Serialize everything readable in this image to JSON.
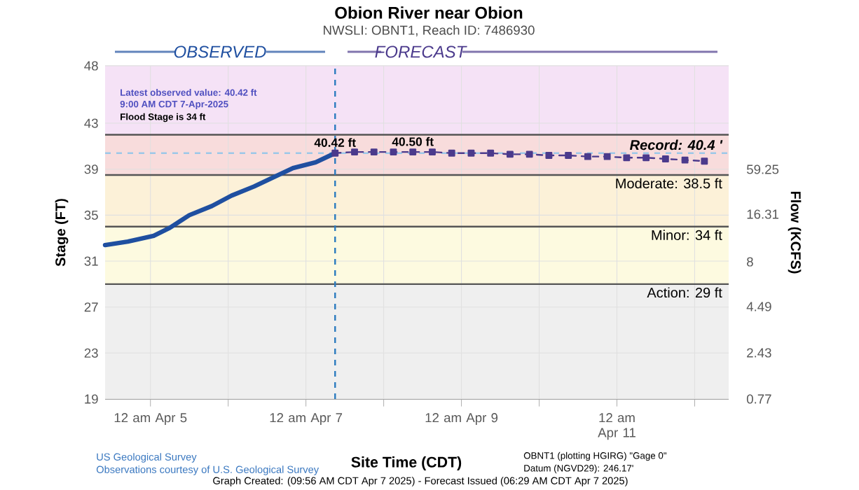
{
  "chart_data": {
    "type": "line",
    "title": "Obion River near Obion",
    "subtitle": "NWSLI: OBNT1, Reach ID: 7486930",
    "xlabel": "Site Time (CDT)",
    "ylabel": "Stage (FT)",
    "y2label": "Flow (KCFS)",
    "xlim": [
      "2025-04-04T10:00",
      "2025-04-12T10:30"
    ],
    "xticks": [
      {
        "value": "2025-04-05T00:00",
        "label": "12 am Apr 5"
      },
      {
        "value": "2025-04-06T00:00",
        "label": null
      },
      {
        "value": "2025-04-07T00:00",
        "label": "12 am Apr 7"
      },
      {
        "value": "2025-04-08T00:00",
        "label": null
      },
      {
        "value": "2025-04-09T00:00",
        "label": "12 am Apr 9"
      },
      {
        "value": "2025-04-10T00:00",
        "label": null
      },
      {
        "value": "2025-04-11T00:00",
        "label": "12 am Apr 11"
      },
      {
        "value": "2025-04-12T00:00",
        "label": null
      }
    ],
    "ylim": [
      19,
      48
    ],
    "yticks": [
      19,
      23,
      27,
      31,
      35,
      39,
      43,
      48
    ],
    "grid": true,
    "marker": "none",
    "line_style": "solid",
    "series": [
      {
        "color": "#1f4fa0",
        "x": [
          "2025-04-04T10:00",
          "2025-04-04T17:00",
          "2025-04-05T01:00",
          "2025-04-05T06:00",
          "2025-04-05T12:00",
          "2025-04-05T19:00",
          "2025-04-06T01:00",
          "2025-04-06T08:00",
          "2025-04-06T14:00",
          "2025-04-06T20:00",
          "2025-04-07T03:00",
          "2025-04-07T09:00"
        ],
        "values": [
          32.4,
          32.7,
          33.2,
          33.9,
          35.0,
          35.8,
          36.7,
          37.5,
          38.3,
          39.1,
          39.6,
          40.4
        ]
      },
      {
        "color": "#4b3a8c",
        "marker": "square",
        "line_style": "dashed",
        "x": [
          "2025-04-07T09:00",
          "2025-04-07T15:00",
          "2025-04-07T21:00",
          "2025-04-08T03:00",
          "2025-04-08T09:00",
          "2025-04-08T15:00",
          "2025-04-08T21:00",
          "2025-04-09T03:00",
          "2025-04-09T09:00",
          "2025-04-09T15:00",
          "2025-04-09T21:00",
          "2025-04-10T03:00",
          "2025-04-10T09:00",
          "2025-04-10T15:00",
          "2025-04-10T21:00",
          "2025-04-11T03:00",
          "2025-04-11T09:00",
          "2025-04-11T15:00",
          "2025-04-11T21:00",
          "2025-04-12T03:00"
        ],
        "values": [
          40.4,
          40.5,
          40.5,
          40.5,
          40.5,
          40.5,
          40.4,
          40.4,
          40.4,
          40.3,
          40.3,
          40.2,
          40.2,
          40.1,
          40.1,
          40.0,
          40.0,
          39.9,
          39.8,
          39.7
        ]
      }
    ],
    "bands": [
      {
        "axis": "y",
        "from": 19,
        "to": 29,
        "color": "#efefef"
      },
      {
        "axis": "y",
        "from": 29,
        "to": 34,
        "color": "#fdfae0"
      },
      {
        "axis": "y",
        "from": 34,
        "to": 38.5,
        "color": "#fcf1d8"
      },
      {
        "axis": "y",
        "from": 38.5,
        "to": 42,
        "color": "#f8dcdc"
      },
      {
        "axis": "y",
        "from": 42,
        "to": 48,
        "color": "#f5e2f6"
      }
    ],
    "ref_lines": [
      {
        "axis": "y",
        "value": 29,
        "label": "Action: 29 ft",
        "color": "#555555"
      },
      {
        "axis": "y",
        "value": 34,
        "label": "Minor: 34 ft",
        "color": "#555555"
      },
      {
        "axis": "y",
        "value": 38.5,
        "label": "Moderate: 38.5 ft",
        "color": "#555555"
      },
      {
        "axis": "y",
        "value": 42,
        "label": null,
        "color": "#555555"
      },
      {
        "axis": "y",
        "value": 40.4,
        "label": "Record: 40.4 '",
        "color": "#9cc8e8",
        "line_style": "dashed"
      },
      {
        "axis": "x",
        "value": "2025-04-07T09:00",
        "label": null,
        "color": "#2b7bbf",
        "line_style": "dashed"
      }
    ],
    "annotations": [
      "OBSERVED",
      "FORECAST",
      "Latest observed value: 40.42 ft",
      "9:00 AM CDT 7-Apr-2025",
      "Flood Stage is 34 ft",
      {
        "text": "40.42 ft",
        "x": "2025-04-07T09:00",
        "y": 40.42
      },
      {
        "text": "40.50 ft",
        "x": "2025-04-08T09:00",
        "y": 40.5
      },
      "US Geological Survey",
      "Observations courtesy of U.S. Geological Survey",
      "OBNT1 (plotting HGIRG) \"Gage 0\"",
      "Datum (NGVD29): 246.17'",
      "Graph Created: (09:56 AM CDT Apr 7 2025) - Forecast Issued (06:29 AM CDT Apr 7 2025)",
      "0.77",
      "2.43",
      "4.49",
      "8",
      "16.31",
      "59.25"
    ]
  }
}
